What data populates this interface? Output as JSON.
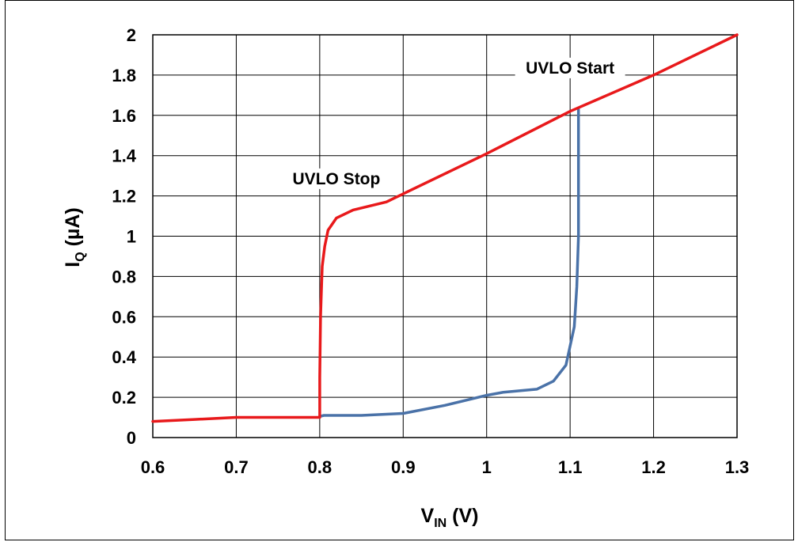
{
  "chart_data": {
    "type": "line",
    "xlabel": {
      "main": "V",
      "sub": "IN",
      "unit": " (V)"
    },
    "ylabel": {
      "main": "I",
      "sub": "Q",
      "unit": " (µA)"
    },
    "xlim": [
      0.6,
      1.3
    ],
    "ylim": [
      0,
      2
    ],
    "x_ticks": [
      0.6,
      0.7,
      0.8,
      0.9,
      1.0,
      1.1,
      1.2,
      1.3
    ],
    "x_tick_labels": [
      "0.6",
      "0.7",
      "0.8",
      "0.9",
      "1",
      "1.1",
      "1.2",
      "1.3"
    ],
    "y_ticks": [
      0,
      0.2,
      0.4,
      0.6,
      0.8,
      1.0,
      1.2,
      1.4,
      1.6,
      1.8,
      2.0
    ],
    "y_tick_labels": [
      "0",
      "0.2",
      "0.4",
      "0.6",
      "0.8",
      "1",
      "1.2",
      "1.4",
      "1.6",
      "1.8",
      "2"
    ],
    "grid": true,
    "series": [
      {
        "color": "#4a72a8",
        "x": [
          0.8,
          0.805,
          0.85,
          0.9,
          0.95,
          1.0,
          1.02,
          1.06,
          1.08,
          1.095,
          1.105,
          1.108,
          1.11,
          1.11,
          1.11
        ],
        "y": [
          0.105,
          0.11,
          0.11,
          0.12,
          0.16,
          0.21,
          0.225,
          0.24,
          0.28,
          0.36,
          0.55,
          0.75,
          1.0,
          1.3,
          1.63
        ]
      },
      {
        "color": "#e8191b",
        "x": [
          0.6,
          0.65,
          0.7,
          0.75,
          0.8,
          0.8,
          0.801,
          0.803,
          0.806,
          0.81,
          0.82,
          0.84,
          0.86,
          0.88,
          0.89,
          1.0,
          1.1,
          1.2,
          1.3
        ],
        "y": [
          0.08,
          0.09,
          0.1,
          0.1,
          0.1,
          0.3,
          0.6,
          0.85,
          0.95,
          1.03,
          1.09,
          1.13,
          1.15,
          1.17,
          1.19,
          1.41,
          1.62,
          1.8,
          2.0
        ]
      }
    ],
    "annotations": [
      {
        "text": "UVLO Start",
        "x": 1.1,
        "y": 1.8
      },
      {
        "text": "UVLO Stop",
        "x": 0.82,
        "y": 1.25
      }
    ]
  }
}
